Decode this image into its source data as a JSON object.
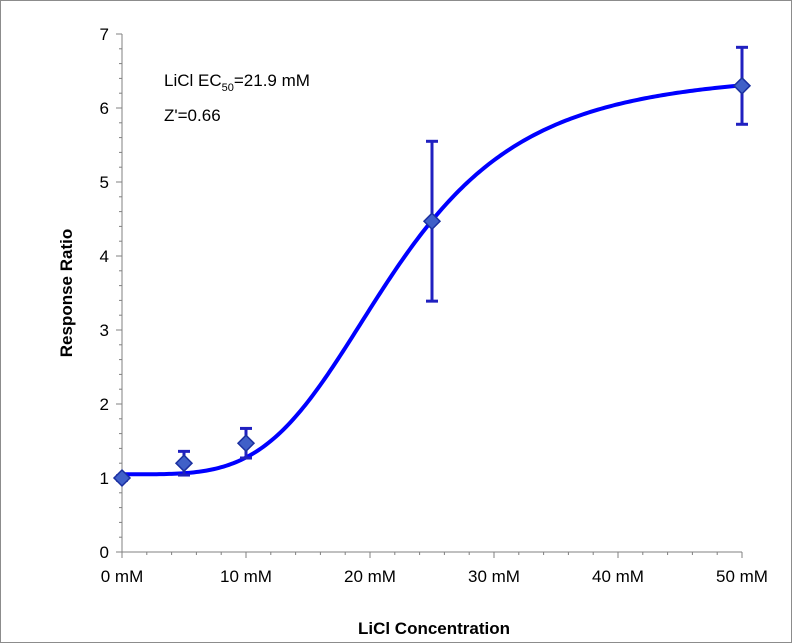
{
  "chart_data": {
    "type": "scatter",
    "title": "",
    "xlabel": "LiCl Concentration",
    "ylabel": "Response Ratio",
    "xlim": [
      0,
      50
    ],
    "ylim": [
      0,
      7
    ],
    "x_ticks": [
      0,
      10,
      20,
      30,
      40,
      50
    ],
    "x_tick_labels": [
      "0 mM",
      "10 mM",
      "20 mM",
      "30 mM",
      "40 mM",
      "50 mM"
    ],
    "y_ticks": [
      0,
      1,
      2,
      3,
      4,
      5,
      6,
      7
    ],
    "y_tick_labels": [
      "0",
      "1",
      "2",
      "3",
      "4",
      "5",
      "6",
      "7"
    ],
    "grid": false,
    "legend": "none",
    "series": [
      {
        "x": [
          0,
          5,
          10,
          25,
          50
        ],
        "y": [
          1.0,
          1.2,
          1.47,
          4.47,
          6.3
        ],
        "error": [
          0.03,
          0.16,
          0.2,
          1.08,
          0.52
        ]
      }
    ],
    "fit_curve": {
      "model": "sigmoid",
      "bottom": 1.05,
      "top": 6.5,
      "ec50": 21.9,
      "hill": 4
    },
    "annotations": {
      "ec50_prefix": "LiCl EC",
      "ec50_subscript": "50",
      "ec50_suffix": "=21.9 mM",
      "zprime": "Z'=0.66"
    },
    "colors": {
      "series": "#0000ff",
      "marker_fill": "#4060c8",
      "marker_stroke": "#1a2fa0",
      "error_bar": "#2020c0",
      "axis": "#808080",
      "frame": "#8c8c8c"
    }
  }
}
